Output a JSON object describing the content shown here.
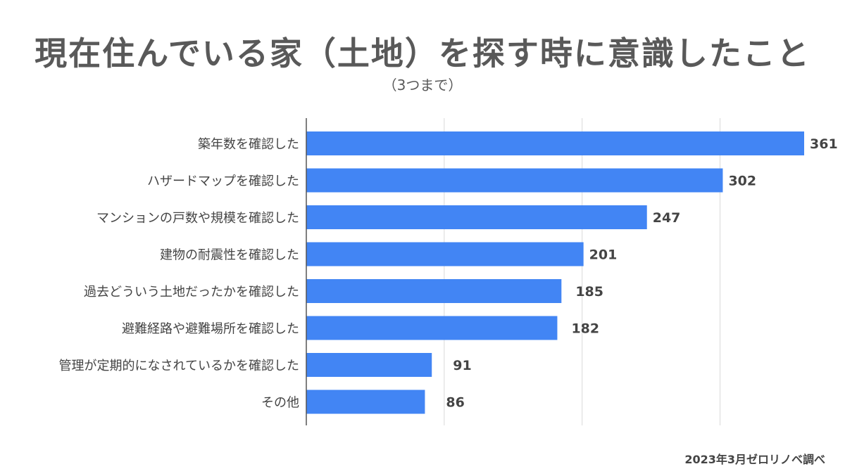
{
  "title": "現在住んでいる家（土地）を探す時に意識したこと",
  "subtitle": "（3つまで）",
  "source": "2023年3月ゼロリノベ調べ",
  "colors": {
    "bar": "#4285f4",
    "grid": "#d9d9d9",
    "axis": "#555555",
    "label": "#444444"
  },
  "chart_data": {
    "type": "bar",
    "orientation": "horizontal",
    "categories": [
      "築年数を確認した",
      "ハザードマップを確認した",
      "マンションの戸数や規模を確認した",
      "建物の耐震性を確認した",
      "過去どういう土地だったかを確認した",
      "避難経路や避難場所を確認した",
      "管理が定期的になされているかを確認した",
      "その他"
    ],
    "values": [
      361,
      302,
      247,
      201,
      185,
      182,
      91,
      86
    ],
    "data_labels": [
      "361",
      "302",
      "247",
      "201",
      "185",
      "182",
      "91",
      "86"
    ],
    "xlim": [
      0,
      370
    ],
    "x_gridlines": [
      0,
      100,
      200,
      300
    ],
    "grid": true,
    "legend": "none"
  }
}
